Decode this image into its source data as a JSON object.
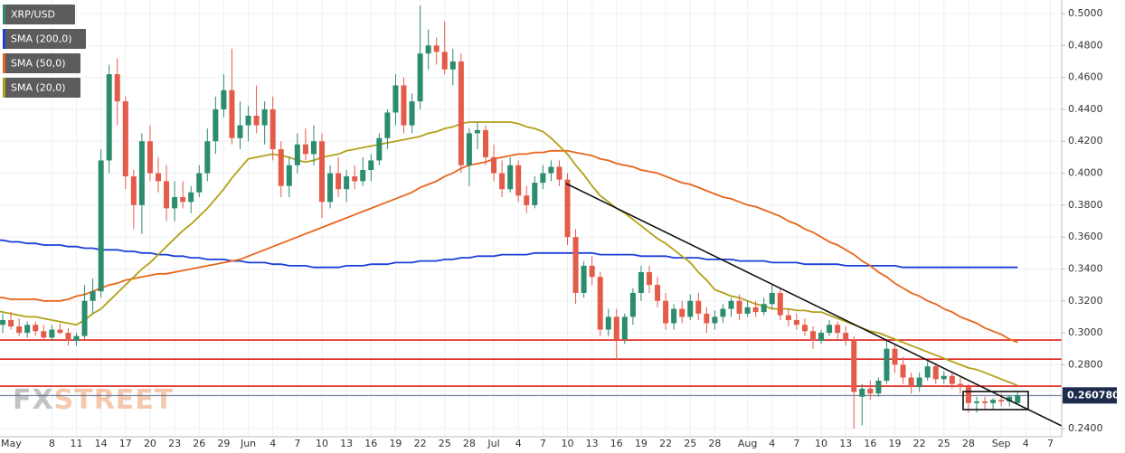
{
  "chart_data": {
    "type": "candlestick",
    "symbol": "XRP/USD",
    "watermark": [
      "FX",
      "STREET"
    ],
    "categories": [
      "May",
      null,
      null,
      null,
      null,
      null,
      null,
      "8",
      null,
      null,
      "11",
      null,
      null,
      "14",
      null,
      null,
      "17",
      null,
      null,
      "20",
      null,
      null,
      "23",
      null,
      null,
      "26",
      null,
      null,
      "29",
      null,
      null,
      "Jun",
      null,
      null,
      "4",
      null,
      null,
      "7",
      null,
      null,
      "10",
      null,
      null,
      "13",
      null,
      null,
      "16",
      null,
      null,
      "19",
      null,
      null,
      "22",
      null,
      null,
      "25",
      null,
      null,
      "28",
      null,
      null,
      "Jul",
      null,
      null,
      "4",
      null,
      null,
      "7",
      null,
      null,
      "10",
      null,
      null,
      "13",
      null,
      null,
      "16",
      null,
      null,
      "19",
      null,
      null,
      "22",
      null,
      null,
      "25",
      null,
      null,
      "28",
      null,
      null,
      null,
      "Aug",
      null,
      null,
      "4",
      null,
      null,
      "7",
      null,
      null,
      "10",
      null,
      null,
      "13",
      null,
      null,
      "16",
      null,
      null,
      "19",
      null,
      null,
      "22",
      null,
      null,
      "25",
      null,
      null,
      "28",
      null,
      null,
      null,
      "Sep",
      null,
      null,
      "4",
      null,
      null,
      "7"
    ],
    "ohlc": [
      null,
      [
        0.305,
        0.312,
        0.3,
        0.308
      ],
      [
        0.308,
        0.313,
        0.302,
        0.304
      ],
      [
        0.304,
        0.309,
        0.298,
        0.3
      ],
      [
        0.3,
        0.307,
        0.297,
        0.305
      ],
      [
        0.305,
        0.307,
        0.298,
        0.301
      ],
      [
        0.301,
        0.305,
        0.295,
        0.297
      ],
      [
        0.297,
        0.305,
        0.295,
        0.302
      ],
      [
        0.302,
        0.306,
        0.299,
        0.3
      ],
      [
        0.3,
        0.303,
        0.292,
        0.295
      ],
      [
        0.295,
        0.3,
        0.292,
        0.298
      ],
      [
        0.298,
        0.33,
        0.296,
        0.32
      ],
      [
        0.32,
        0.334,
        0.312,
        0.326
      ],
      [
        0.326,
        0.415,
        0.322,
        0.408
      ],
      [
        0.408,
        0.468,
        0.4,
        0.462
      ],
      [
        0.462,
        0.472,
        0.43,
        0.445
      ],
      [
        0.445,
        0.448,
        0.39,
        0.398
      ],
      [
        0.398,
        0.402,
        0.365,
        0.38
      ],
      [
        0.38,
        0.425,
        0.362,
        0.42
      ],
      [
        0.42,
        0.43,
        0.395,
        0.4
      ],
      [
        0.4,
        0.41,
        0.388,
        0.395
      ],
      [
        0.395,
        0.405,
        0.37,
        0.378
      ],
      [
        0.378,
        0.395,
        0.37,
        0.385
      ],
      [
        0.385,
        0.395,
        0.378,
        0.382
      ],
      [
        0.382,
        0.392,
        0.375,
        0.388
      ],
      [
        0.388,
        0.405,
        0.385,
        0.4
      ],
      [
        0.4,
        0.428,
        0.395,
        0.42
      ],
      [
        0.42,
        0.448,
        0.412,
        0.44
      ],
      [
        0.44,
        0.462,
        0.435,
        0.452
      ],
      [
        0.452,
        0.478,
        0.418,
        0.422
      ],
      [
        0.422,
        0.445,
        0.415,
        0.43
      ],
      [
        0.43,
        0.442,
        0.42,
        0.436
      ],
      [
        0.436,
        0.455,
        0.425,
        0.43
      ],
      [
        0.43,
        0.445,
        0.418,
        0.44
      ],
      [
        0.44,
        0.448,
        0.408,
        0.415
      ],
      [
        0.415,
        0.42,
        0.385,
        0.392
      ],
      [
        0.392,
        0.41,
        0.385,
        0.405
      ],
      [
        0.405,
        0.425,
        0.4,
        0.418
      ],
      [
        0.418,
        0.428,
        0.408,
        0.412
      ],
      [
        0.412,
        0.43,
        0.405,
        0.42
      ],
      [
        0.42,
        0.425,
        0.372,
        0.382
      ],
      [
        0.382,
        0.405,
        0.378,
        0.4
      ],
      [
        0.4,
        0.41,
        0.385,
        0.39
      ],
      [
        0.39,
        0.402,
        0.382,
        0.398
      ],
      [
        0.398,
        0.405,
        0.39,
        0.395
      ],
      [
        0.395,
        0.41,
        0.392,
        0.402
      ],
      [
        0.402,
        0.412,
        0.395,
        0.408
      ],
      [
        0.408,
        0.425,
        0.405,
        0.422
      ],
      [
        0.422,
        0.44,
        0.415,
        0.438
      ],
      [
        0.438,
        0.462,
        0.43,
        0.455
      ],
      [
        0.455,
        0.46,
        0.425,
        0.43
      ],
      [
        0.43,
        0.45,
        0.425,
        0.445
      ],
      [
        0.445,
        0.505,
        0.44,
        0.475
      ],
      [
        0.475,
        0.49,
        0.465,
        0.48
      ],
      [
        0.48,
        0.485,
        0.468,
        0.476
      ],
      [
        0.476,
        0.495,
        0.462,
        0.465
      ],
      [
        0.465,
        0.478,
        0.455,
        0.47
      ],
      [
        0.47,
        0.475,
        0.4,
        0.405
      ],
      [
        0.405,
        0.428,
        0.392,
        0.425
      ],
      [
        0.425,
        0.432,
        0.415,
        0.427
      ],
      [
        0.427,
        0.43,
        0.405,
        0.41
      ],
      [
        0.41,
        0.418,
        0.395,
        0.4
      ],
      [
        0.4,
        0.408,
        0.385,
        0.39
      ],
      [
        0.39,
        0.41,
        0.388,
        0.405
      ],
      [
        0.405,
        0.408,
        0.382,
        0.386
      ],
      [
        0.386,
        0.392,
        0.375,
        0.38
      ],
      [
        0.38,
        0.398,
        0.378,
        0.394
      ],
      [
        0.394,
        0.405,
        0.39,
        0.4
      ],
      [
        0.4,
        0.408,
        0.395,
        0.404
      ],
      [
        0.404,
        0.408,
        0.392,
        0.396
      ],
      [
        0.396,
        0.4,
        0.355,
        0.36
      ],
      [
        0.36,
        0.365,
        0.318,
        0.325
      ],
      [
        0.325,
        0.345,
        0.322,
        0.342
      ],
      [
        0.342,
        0.348,
        0.33,
        0.335
      ],
      [
        0.335,
        0.338,
        0.298,
        0.302
      ],
      [
        0.302,
        0.315,
        0.298,
        0.31
      ],
      [
        0.31,
        0.315,
        0.283,
        0.296
      ],
      [
        0.296,
        0.312,
        0.293,
        0.31
      ],
      [
        0.31,
        0.328,
        0.305,
        0.325
      ],
      [
        0.325,
        0.342,
        0.32,
        0.338
      ],
      [
        0.338,
        0.342,
        0.325,
        0.33
      ],
      [
        0.33,
        0.335,
        0.316,
        0.32
      ],
      [
        0.32,
        0.325,
        0.302,
        0.306
      ],
      [
        0.306,
        0.318,
        0.302,
        0.315
      ],
      [
        0.315,
        0.32,
        0.306,
        0.31
      ],
      [
        0.31,
        0.324,
        0.308,
        0.32
      ],
      [
        0.32,
        0.325,
        0.308,
        0.312
      ],
      [
        0.312,
        0.316,
        0.3,
        0.306
      ],
      [
        0.306,
        0.314,
        0.302,
        0.31
      ],
      [
        0.31,
        0.318,
        0.306,
        0.315
      ],
      [
        0.315,
        0.322,
        0.31,
        0.32
      ],
      [
        0.32,
        0.324,
        0.308,
        0.312
      ],
      [
        0.312,
        0.32,
        0.31,
        0.316
      ],
      [
        0.316,
        0.32,
        0.31,
        0.313
      ],
      [
        0.313,
        0.322,
        0.311,
        0.318
      ],
      [
        0.318,
        0.33,
        0.315,
        0.325
      ],
      [
        0.325,
        0.328,
        0.308,
        0.311
      ],
      [
        0.311,
        0.315,
        0.304,
        0.308
      ],
      [
        0.308,
        0.312,
        0.302,
        0.305
      ],
      [
        0.305,
        0.309,
        0.298,
        0.301
      ],
      [
        0.301,
        0.304,
        0.29,
        0.295
      ],
      [
        0.295,
        0.302,
        0.293,
        0.3
      ],
      [
        0.3,
        0.308,
        0.298,
        0.305
      ],
      [
        0.305,
        0.307,
        0.296,
        0.3
      ],
      [
        0.3,
        0.304,
        0.292,
        0.296
      ],
      [
        0.296,
        0.298,
        0.24,
        0.263
      ],
      [
        0.26,
        0.268,
        0.242,
        0.265
      ],
      [
        0.265,
        0.27,
        0.258,
        0.262
      ],
      [
        0.262,
        0.272,
        0.26,
        0.27
      ],
      [
        0.27,
        0.295,
        0.268,
        0.29
      ],
      [
        0.29,
        0.293,
        0.275,
        0.28
      ],
      [
        0.28,
        0.285,
        0.268,
        0.272
      ],
      [
        0.272,
        0.275,
        0.262,
        0.266
      ],
      [
        0.266,
        0.275,
        0.263,
        0.272
      ],
      [
        0.272,
        0.282,
        0.27,
        0.279
      ],
      [
        0.279,
        0.281,
        0.268,
        0.271
      ],
      [
        0.271,
        0.276,
        0.268,
        0.273
      ],
      [
        0.273,
        0.276,
        0.265,
        0.268
      ],
      [
        0.268,
        0.272,
        0.262,
        0.266
      ],
      [
        0.266,
        0.268,
        0.25,
        0.256
      ],
      [
        0.256,
        0.26,
        0.25,
        0.257
      ],
      [
        0.257,
        0.26,
        0.252,
        0.256
      ],
      [
        0.256,
        0.259,
        0.252,
        0.258
      ],
      [
        0.258,
        0.262,
        0.254,
        0.257
      ],
      [
        0.257,
        0.261,
        0.254,
        0.26
      ],
      [
        0.256,
        0.263,
        0.255,
        0.2608
      ],
      null,
      null,
      null,
      null
    ],
    "up_color": "#2b8c6e",
    "down_color": "#e45b4a",
    "series": [
      {
        "name": "SMA (200,0)",
        "color": "#1c3fd8",
        "values": [
          0.358,
          0.358,
          0.357,
          0.357,
          0.356,
          0.356,
          0.355,
          0.355,
          0.355,
          0.354,
          0.354,
          0.353,
          0.353,
          0.352,
          0.352,
          0.352,
          0.351,
          0.351,
          0.35,
          0.35,
          0.349,
          0.349,
          0.348,
          0.348,
          0.347,
          0.347,
          0.346,
          0.346,
          0.346,
          0.345,
          0.345,
          0.344,
          0.344,
          0.344,
          0.343,
          0.343,
          0.342,
          0.342,
          0.342,
          0.341,
          0.341,
          0.341,
          0.341,
          0.342,
          0.342,
          0.342,
          0.343,
          0.343,
          0.343,
          0.344,
          0.344,
          0.344,
          0.345,
          0.345,
          0.345,
          0.346,
          0.346,
          0.347,
          0.347,
          0.348,
          0.348,
          0.348,
          0.349,
          0.349,
          0.349,
          0.349,
          0.35,
          0.35,
          0.35,
          0.35,
          0.35,
          0.35,
          0.35,
          0.35,
          0.349,
          0.349,
          0.349,
          0.349,
          0.349,
          0.348,
          0.348,
          0.348,
          0.348,
          0.347,
          0.347,
          0.347,
          0.347,
          0.346,
          0.346,
          0.346,
          0.346,
          0.345,
          0.345,
          0.345,
          0.345,
          0.344,
          0.344,
          0.344,
          0.344,
          0.343,
          0.343,
          0.343,
          0.343,
          0.343,
          0.342,
          0.342,
          0.342,
          0.342,
          0.342,
          0.342,
          0.342,
          0.341,
          0.341,
          0.341,
          0.341,
          0.341,
          0.341,
          0.341,
          0.341,
          0.341,
          0.341,
          0.341,
          0.341,
          0.341,
          0.341,
          0.341,
          null,
          null,
          null,
          null
        ]
      },
      {
        "name": "SMA (50,0)",
        "color": "#e8661c",
        "values": [
          0.322,
          0.322,
          0.321,
          0.321,
          0.321,
          0.321,
          0.32,
          0.32,
          0.32,
          0.321,
          0.323,
          0.324,
          0.326,
          0.328,
          0.33,
          0.331,
          0.333,
          0.334,
          0.335,
          0.336,
          0.337,
          0.337,
          0.338,
          0.339,
          0.34,
          0.341,
          0.342,
          0.343,
          0.344,
          0.345,
          0.346,
          0.348,
          0.35,
          0.352,
          0.354,
          0.356,
          0.358,
          0.36,
          0.362,
          0.364,
          0.366,
          0.368,
          0.37,
          0.372,
          0.374,
          0.376,
          0.378,
          0.38,
          0.382,
          0.384,
          0.386,
          0.388,
          0.391,
          0.393,
          0.395,
          0.398,
          0.4,
          0.403,
          0.405,
          0.406,
          0.407,
          0.409,
          0.41,
          0.411,
          0.412,
          0.412,
          0.413,
          0.413,
          0.414,
          0.414,
          0.414,
          0.413,
          0.412,
          0.411,
          0.409,
          0.408,
          0.406,
          0.405,
          0.404,
          0.402,
          0.401,
          0.4,
          0.398,
          0.396,
          0.394,
          0.393,
          0.391,
          0.389,
          0.387,
          0.385,
          0.384,
          0.382,
          0.38,
          0.379,
          0.377,
          0.375,
          0.373,
          0.37,
          0.368,
          0.365,
          0.363,
          0.36,
          0.357,
          0.355,
          0.352,
          0.349,
          0.345,
          0.342,
          0.338,
          0.335,
          0.331,
          0.328,
          0.325,
          0.323,
          0.32,
          0.318,
          0.315,
          0.313,
          0.31,
          0.308,
          0.306,
          0.303,
          0.301,
          0.299,
          0.296,
          0.294,
          null,
          null,
          null,
          null
        ]
      },
      {
        "name": "SMA (20,0)",
        "color": "#b3a017",
        "values": [
          0.314,
          0.313,
          0.312,
          0.311,
          0.31,
          0.31,
          0.309,
          0.308,
          0.307,
          0.306,
          0.305,
          0.308,
          0.312,
          0.315,
          0.32,
          0.325,
          0.33,
          0.335,
          0.34,
          0.344,
          0.349,
          0.354,
          0.359,
          0.364,
          0.368,
          0.373,
          0.378,
          0.384,
          0.39,
          0.397,
          0.403,
          0.409,
          0.41,
          0.411,
          0.412,
          0.411,
          0.41,
          0.408,
          0.407,
          0.408,
          0.41,
          0.411,
          0.412,
          0.414,
          0.415,
          0.416,
          0.417,
          0.418,
          0.419,
          0.42,
          0.421,
          0.422,
          0.423,
          0.425,
          0.426,
          0.428,
          0.429,
          0.431,
          0.432,
          0.432,
          0.432,
          0.432,
          0.432,
          0.432,
          0.431,
          0.429,
          0.428,
          0.426,
          0.422,
          0.417,
          0.412,
          0.405,
          0.399,
          0.392,
          0.386,
          0.382,
          0.378,
          0.375,
          0.371,
          0.367,
          0.363,
          0.359,
          0.356,
          0.352,
          0.348,
          0.344,
          0.338,
          0.333,
          0.327,
          0.325,
          0.323,
          0.322,
          0.32,
          0.318,
          0.317,
          0.315,
          0.315,
          0.315,
          0.314,
          0.314,
          0.313,
          0.313,
          0.311,
          0.309,
          0.307,
          0.305,
          0.303,
          0.301,
          0.3,
          0.298,
          0.296,
          0.294,
          0.292,
          0.29,
          0.288,
          0.286,
          0.284,
          0.282,
          0.28,
          0.278,
          0.277,
          0.275,
          0.273,
          0.271,
          0.269,
          0.267,
          null,
          null,
          null,
          null
        ]
      }
    ],
    "hlines": [
      0.2955,
      0.2835,
      0.2666
    ],
    "hline_color": "#e0201a",
    "last_price": {
      "value": 0.26078,
      "label": "0.260780"
    },
    "ylim": [
      0.2349,
      0.5085
    ],
    "yticks": [
      {
        "value": 0.24,
        "label": "0.2400"
      },
      {
        "value": 0.26,
        "label": "0.2600"
      },
      {
        "value": 0.28,
        "label": "0.2800"
      },
      {
        "value": 0.3,
        "label": "0.3000"
      },
      {
        "value": 0.32,
        "label": "0.3200"
      },
      {
        "value": 0.34,
        "label": "0.3400"
      },
      {
        "value": 0.36,
        "label": "0.3600"
      },
      {
        "value": 0.38,
        "label": "0.3800"
      },
      {
        "value": 0.4,
        "label": "0.4000"
      },
      {
        "value": 0.42,
        "label": "0.4200"
      },
      {
        "value": 0.44,
        "label": "0.4400"
      },
      {
        "value": 0.46,
        "label": "0.4600"
      },
      {
        "value": 0.48,
        "label": "0.4800"
      },
      {
        "value": 0.5,
        "label": "0.5000"
      }
    ],
    "grid": true
  }
}
